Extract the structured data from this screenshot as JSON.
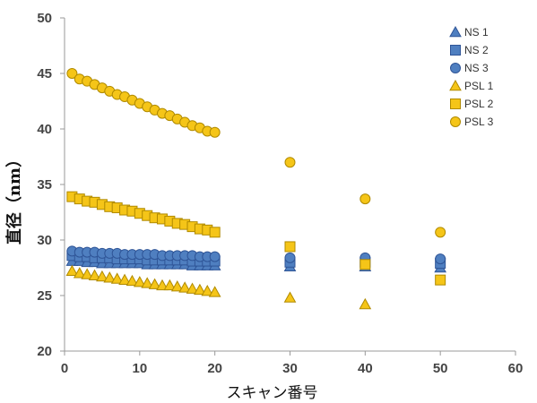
{
  "chart_data": {
    "type": "scatter",
    "xlabel": "スキャン番号",
    "ylabel": "直径（nm）",
    "xlim": [
      0,
      60
    ],
    "ylim": [
      20,
      50
    ],
    "xticks": [
      0,
      10,
      20,
      30,
      40,
      50,
      60
    ],
    "yticks": [
      20,
      25,
      30,
      35,
      40,
      45,
      50
    ],
    "grid": false,
    "legend_position": "top-right",
    "series": [
      {
        "name": "NS 1",
        "marker": "triangle",
        "color": "#4F7FC0",
        "stroke": "#2F5597",
        "points": [
          [
            1,
            28.1
          ],
          [
            2,
            28.1
          ],
          [
            3,
            28.0
          ],
          [
            4,
            28.0
          ],
          [
            5,
            27.9
          ],
          [
            6,
            27.9
          ],
          [
            7,
            27.9
          ],
          [
            8,
            27.9
          ],
          [
            9,
            27.9
          ],
          [
            10,
            27.9
          ],
          [
            11,
            27.8
          ],
          [
            12,
            27.8
          ],
          [
            13,
            27.8
          ],
          [
            14,
            27.8
          ],
          [
            15,
            27.8
          ],
          [
            16,
            27.8
          ],
          [
            17,
            27.7
          ],
          [
            18,
            27.7
          ],
          [
            19,
            27.7
          ],
          [
            20,
            27.7
          ],
          [
            30,
            27.6
          ],
          [
            40,
            27.6
          ],
          [
            50,
            27.5
          ]
        ]
      },
      {
        "name": "NS 2",
        "marker": "square",
        "color": "#4F7FC0",
        "stroke": "#2F5597",
        "points": [
          [
            1,
            28.6
          ],
          [
            2,
            28.5
          ],
          [
            3,
            28.5
          ],
          [
            4,
            28.4
          ],
          [
            5,
            28.4
          ],
          [
            6,
            28.4
          ],
          [
            7,
            28.3
          ],
          [
            8,
            28.3
          ],
          [
            9,
            28.3
          ],
          [
            10,
            28.3
          ],
          [
            11,
            28.2
          ],
          [
            12,
            28.2
          ],
          [
            13,
            28.2
          ],
          [
            14,
            28.2
          ],
          [
            15,
            28.2
          ],
          [
            16,
            28.2
          ],
          [
            17,
            28.1
          ],
          [
            18,
            28.1
          ],
          [
            19,
            28.1
          ],
          [
            20,
            28.1
          ],
          [
            30,
            28.0
          ],
          [
            40,
            28.0
          ],
          [
            50,
            27.9
          ]
        ]
      },
      {
        "name": "NS 3",
        "marker": "circle",
        "color": "#4F7FC0",
        "stroke": "#2F5597",
        "points": [
          [
            1,
            29.0
          ],
          [
            2,
            28.9
          ],
          [
            3,
            28.9
          ],
          [
            4,
            28.9
          ],
          [
            5,
            28.8
          ],
          [
            6,
            28.8
          ],
          [
            7,
            28.8
          ],
          [
            8,
            28.7
          ],
          [
            9,
            28.7
          ],
          [
            10,
            28.7
          ],
          [
            11,
            28.7
          ],
          [
            12,
            28.7
          ],
          [
            13,
            28.6
          ],
          [
            14,
            28.6
          ],
          [
            15,
            28.6
          ],
          [
            16,
            28.6
          ],
          [
            17,
            28.6
          ],
          [
            18,
            28.5
          ],
          [
            19,
            28.5
          ],
          [
            20,
            28.5
          ],
          [
            30,
            28.4
          ],
          [
            40,
            28.4
          ],
          [
            50,
            28.3
          ]
        ]
      },
      {
        "name": "PSL 1",
        "marker": "triangle",
        "color": "#F5C518",
        "stroke": "#B08A00",
        "points": [
          [
            1,
            27.2
          ],
          [
            2,
            27.0
          ],
          [
            3,
            26.9
          ],
          [
            4,
            26.8
          ],
          [
            5,
            26.7
          ],
          [
            6,
            26.6
          ],
          [
            7,
            26.5
          ],
          [
            8,
            26.4
          ],
          [
            9,
            26.3
          ],
          [
            10,
            26.2
          ],
          [
            11,
            26.1
          ],
          [
            12,
            26.0
          ],
          [
            13,
            25.9
          ],
          [
            14,
            25.9
          ],
          [
            15,
            25.8
          ],
          [
            16,
            25.7
          ],
          [
            17,
            25.6
          ],
          [
            18,
            25.5
          ],
          [
            19,
            25.4
          ],
          [
            20,
            25.3
          ],
          [
            30,
            24.8
          ],
          [
            40,
            24.2
          ],
          [
            50,
            null
          ]
        ]
      },
      {
        "name": "PSL 2",
        "marker": "square",
        "color": "#F5C518",
        "stroke": "#B08A00",
        "points": [
          [
            1,
            33.9
          ],
          [
            2,
            33.7
          ],
          [
            3,
            33.5
          ],
          [
            4,
            33.4
          ],
          [
            5,
            33.2
          ],
          [
            6,
            33.0
          ],
          [
            7,
            32.9
          ],
          [
            8,
            32.7
          ],
          [
            9,
            32.6
          ],
          [
            10,
            32.4
          ],
          [
            11,
            32.2
          ],
          [
            12,
            32.0
          ],
          [
            13,
            31.9
          ],
          [
            14,
            31.7
          ],
          [
            15,
            31.5
          ],
          [
            16,
            31.4
          ],
          [
            17,
            31.2
          ],
          [
            18,
            31.0
          ],
          [
            19,
            30.9
          ],
          [
            20,
            30.7
          ],
          [
            30,
            29.4
          ],
          [
            40,
            27.8
          ],
          [
            50,
            26.4
          ]
        ]
      },
      {
        "name": "PSL 3",
        "marker": "circle",
        "color": "#F5C518",
        "stroke": "#B08A00",
        "points": [
          [
            1,
            45.0
          ],
          [
            2,
            44.5
          ],
          [
            3,
            44.3
          ],
          [
            4,
            44.0
          ],
          [
            5,
            43.7
          ],
          [
            6,
            43.4
          ],
          [
            7,
            43.1
          ],
          [
            8,
            42.9
          ],
          [
            9,
            42.6
          ],
          [
            10,
            42.3
          ],
          [
            11,
            42.0
          ],
          [
            12,
            41.7
          ],
          [
            13,
            41.4
          ],
          [
            14,
            41.2
          ],
          [
            15,
            40.9
          ],
          [
            16,
            40.6
          ],
          [
            17,
            40.3
          ],
          [
            18,
            40.1
          ],
          [
            19,
            39.8
          ],
          [
            20,
            39.7
          ],
          [
            30,
            37.0
          ],
          [
            40,
            33.7
          ],
          [
            50,
            30.7
          ]
        ]
      }
    ]
  }
}
